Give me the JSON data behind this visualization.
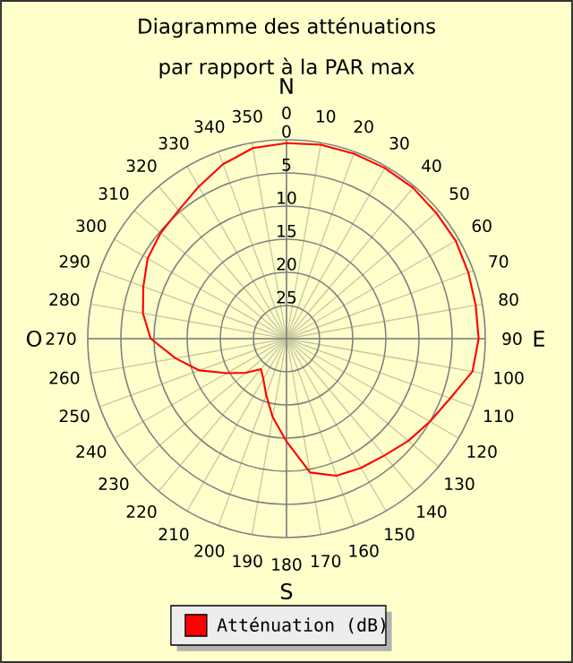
{
  "chart_data": {
    "type": "radar",
    "title": "Diagramme des atténuations",
    "subtitle": "par rapport à la PAR max",
    "categories": [
      "0",
      "10",
      "20",
      "30",
      "40",
      "50",
      "60",
      "70",
      "80",
      "90",
      "100",
      "110",
      "120",
      "130",
      "140",
      "150",
      "160",
      "170",
      "180",
      "190",
      "200",
      "210",
      "220",
      "230",
      "240",
      "250",
      "260",
      "270",
      "280",
      "290",
      "300",
      "310",
      "320",
      "330",
      "340",
      "350"
    ],
    "series": [
      {
        "name": "Atténuation (dB)",
        "color": "#ff0000",
        "values": [
          0.5,
          0.3,
          0.3,
          0.3,
          0.3,
          0.5,
          0.5,
          0.8,
          1,
          1,
          1.5,
          3.7,
          5,
          6,
          7,
          7.5,
          8,
          9.5,
          14.5,
          18,
          21,
          23,
          24,
          22,
          19.6,
          16,
          13,
          9.5,
          8,
          7,
          5.8,
          5.2,
          4.7,
          3.5,
          2,
          0.8
        ]
      }
    ],
    "ylim": [
      30,
      0
    ],
    "yticks": [
      0,
      5,
      10,
      15,
      20,
      25
    ],
    "annotations": [
      "N",
      "E",
      "S",
      "O"
    ],
    "grid": true,
    "legend": "bottom",
    "line_style": "solid"
  }
}
